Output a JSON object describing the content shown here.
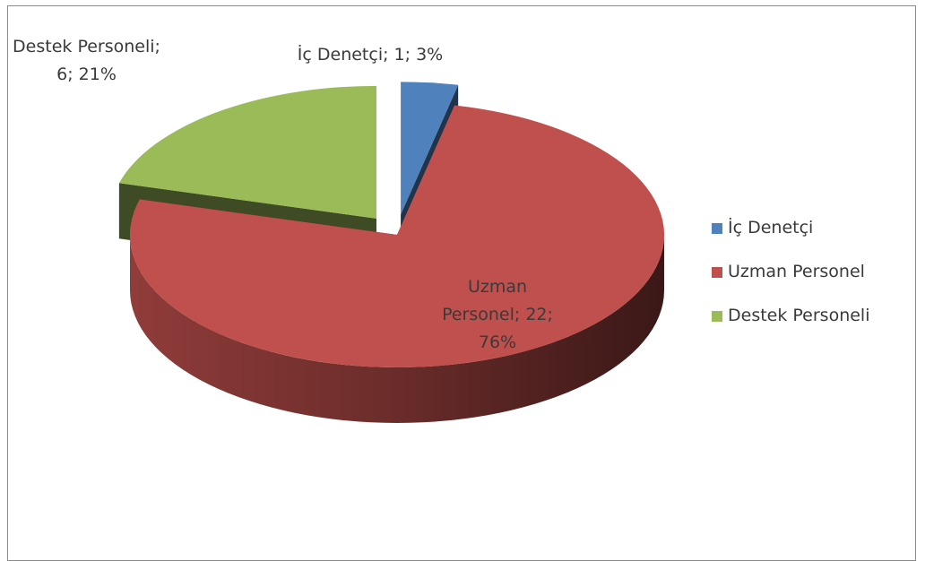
{
  "chart_data": {
    "type": "pie3d",
    "categories": [
      "İç Denetçi",
      "Uzman Personel",
      "Destek Personeli"
    ],
    "values": [
      1,
      22,
      6
    ],
    "value_labels": [
      "İç Denetçi; 1; 3%",
      "Uzman Personel; 22; 76%",
      "Destek Personeli; 6; 21%"
    ],
    "colors": [
      "#4f81bd",
      "#c0504d",
      "#9bbb59"
    ],
    "legend": "right"
  }
}
